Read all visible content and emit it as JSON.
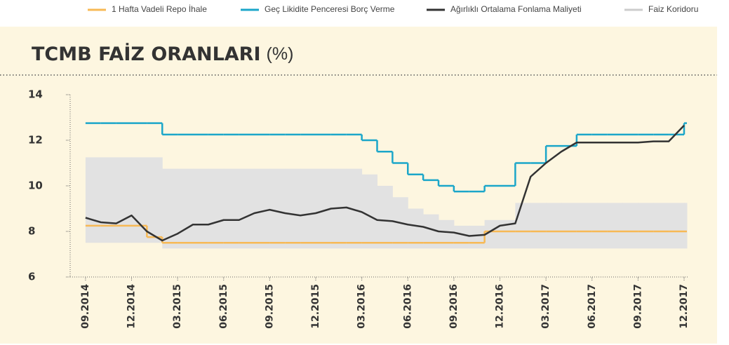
{
  "chart_data": {
    "type": "line",
    "title": "TCMB FAİZ ORANLARI",
    "title_unit": "(%)",
    "x": [
      "2014-09",
      "2014-10",
      "2014-11",
      "2014-12",
      "2015-01",
      "2015-02",
      "2015-03",
      "2015-04",
      "2015-05",
      "2015-06",
      "2015-07",
      "2015-08",
      "2015-09",
      "2015-10",
      "2015-11",
      "2015-12",
      "2016-01",
      "2016-02",
      "2016-03",
      "2016-04",
      "2016-05",
      "2016-06",
      "2016-07",
      "2016-08",
      "2016-09",
      "2016-10",
      "2016-11",
      "2016-12",
      "2017-01",
      "2017-02",
      "2017-03",
      "2017-04",
      "2017-05",
      "2017-06",
      "2017-07",
      "2017-08",
      "2017-09",
      "2017-10",
      "2017-11",
      "2017-12"
    ],
    "series": [
      {
        "name": "1 Hafta Vadeli Repo İhale",
        "color": "#f7b955",
        "style": "step",
        "values": [
          8.25,
          8.25,
          8.25,
          8.25,
          7.75,
          7.5,
          7.5,
          7.5,
          7.5,
          7.5,
          7.5,
          7.5,
          7.5,
          7.5,
          7.5,
          7.5,
          7.5,
          7.5,
          7.5,
          7.5,
          7.5,
          7.5,
          7.5,
          7.5,
          7.5,
          7.5,
          8.0,
          8.0,
          8.0,
          8.0,
          8.0,
          8.0,
          8.0,
          8.0,
          8.0,
          8.0,
          8.0,
          8.0,
          8.0,
          8.0
        ]
      },
      {
        "name": "Geç Likidite Penceresi Borç Verme",
        "color": "#1ba6c9",
        "style": "step",
        "values": [
          12.75,
          12.75,
          12.75,
          12.75,
          12.75,
          12.25,
          12.25,
          12.25,
          12.25,
          12.25,
          12.25,
          12.25,
          12.25,
          12.25,
          12.25,
          12.25,
          12.25,
          12.25,
          12.0,
          11.5,
          11.0,
          10.5,
          10.25,
          10.0,
          9.75,
          9.75,
          10.0,
          10.0,
          11.0,
          11.0,
          11.75,
          11.75,
          12.25,
          12.25,
          12.25,
          12.25,
          12.25,
          12.25,
          12.25,
          12.75
        ]
      },
      {
        "name": "Ağırlıklı Ortalama Fonlama Maliyeti",
        "color": "#333333",
        "style": "line",
        "values": [
          8.6,
          8.4,
          8.35,
          8.7,
          8.0,
          7.6,
          7.9,
          8.3,
          8.3,
          8.5,
          8.5,
          8.8,
          8.95,
          8.8,
          8.7,
          8.8,
          9.0,
          9.05,
          8.85,
          8.5,
          8.45,
          8.3,
          8.2,
          8.0,
          7.95,
          7.8,
          7.85,
          8.25,
          8.35,
          10.4,
          11.0,
          11.5,
          11.9,
          11.9,
          11.9,
          11.9,
          11.9,
          11.95,
          11.95,
          12.65
        ]
      },
      {
        "name": "Faiz Koridoru",
        "color": "#e2e2e2",
        "style": "band",
        "low": [
          7.5,
          7.5,
          7.5,
          7.5,
          7.5,
          7.25,
          7.25,
          7.25,
          7.25,
          7.25,
          7.25,
          7.25,
          7.25,
          7.25,
          7.25,
          7.25,
          7.25,
          7.25,
          7.25,
          7.25,
          7.25,
          7.25,
          7.25,
          7.25,
          7.25,
          7.25,
          7.25,
          7.25,
          7.25,
          7.25,
          7.25,
          7.25,
          7.25,
          7.25,
          7.25,
          7.25,
          7.25,
          7.25,
          7.25,
          7.25
        ],
        "high": [
          11.25,
          11.25,
          11.25,
          11.25,
          11.25,
          10.75,
          10.75,
          10.75,
          10.75,
          10.75,
          10.75,
          10.75,
          10.75,
          10.75,
          10.75,
          10.75,
          10.75,
          10.75,
          10.5,
          10.0,
          9.5,
          9.0,
          8.75,
          8.5,
          8.25,
          8.25,
          8.5,
          8.5,
          9.25,
          9.25,
          9.25,
          9.25,
          9.25,
          9.25,
          9.25,
          9.25,
          9.25,
          9.25,
          9.25,
          9.25
        ]
      }
    ],
    "xlim": [
      "2014-08",
      "2017-12"
    ],
    "xticks": [
      {
        "value": "2014-09",
        "label": "09.2014"
      },
      {
        "value": "2014-12",
        "label": "12.2014"
      },
      {
        "value": "2015-03",
        "label": "03.2015"
      },
      {
        "value": "2015-06",
        "label": "06.2015"
      },
      {
        "value": "2015-09",
        "label": "09.2015"
      },
      {
        "value": "2015-12",
        "label": "12.2015"
      },
      {
        "value": "2016-03",
        "label": "03.2016"
      },
      {
        "value": "2016-06",
        "label": "06.2016"
      },
      {
        "value": "2016-09",
        "label": "09.2016"
      },
      {
        "value": "2016-12",
        "label": "12.2016"
      },
      {
        "value": "2017-03",
        "label": "03.2017"
      },
      {
        "value": "2017-06",
        "label": "06.2017"
      },
      {
        "value": "2017-09",
        "label": "09.2017"
      },
      {
        "value": "2017-12",
        "label": "12.2017"
      }
    ],
    "ylim": [
      6,
      14
    ],
    "yticks": [
      6,
      8,
      10,
      12,
      14
    ],
    "grid": false,
    "legend": "top-right"
  }
}
